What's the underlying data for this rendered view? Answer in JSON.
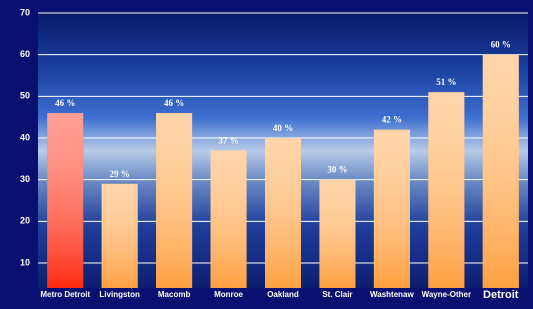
{
  "chart_data": {
    "type": "bar",
    "categories": [
      "Metro Detroit",
      "Livingston",
      "Macomb",
      "Monroe",
      "Oakland",
      "St. Clair",
      "Washtenaw",
      "Wayne-Other",
      "Detroit"
    ],
    "values": [
      46,
      29,
      46,
      37,
      40,
      30,
      42,
      51,
      60
    ],
    "value_labels": [
      "46 %",
      "29 %",
      "46 %",
      "37 %",
      "40 %",
      "30 %",
      "42 %",
      "51 %",
      "60 %"
    ],
    "colors": [
      "#ff2a10",
      "#ffa040",
      "#ffa040",
      "#ffa040",
      "#ffa040",
      "#ffa040",
      "#ffa040",
      "#ffa040",
      "#ffa040"
    ],
    "ylim": [
      4,
      70
    ],
    "yticks": [
      10,
      20,
      30,
      40,
      50,
      60,
      70
    ],
    "grid": true
  }
}
